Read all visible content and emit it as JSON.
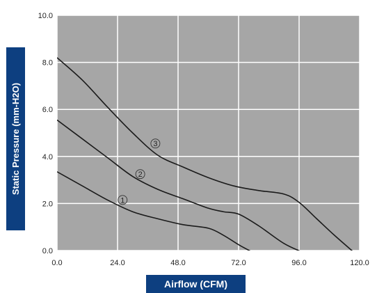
{
  "colors": {
    "plot_background": "#a6a6a6",
    "grid": "#ffffff",
    "curve": "#1a1a1a",
    "label_box": "#0d3f80"
  },
  "chart_data": {
    "type": "line",
    "title": "",
    "xlabel": "Airflow (CFM)",
    "ylabel": "Static Pressure (mm-H2O)",
    "xlim": [
      0,
      120
    ],
    "ylim": [
      0,
      10
    ],
    "xticks": [
      "0.0",
      "24.0",
      "48.0",
      "72.0",
      "96.0",
      "120.0"
    ],
    "yticks": [
      "0.0",
      "2.0",
      "4.0",
      "6.0",
      "8.0",
      "10.0"
    ],
    "grid": true,
    "series": [
      {
        "name": "1",
        "x": [
          0,
          10,
          20,
          30,
          40,
          50,
          60,
          66,
          72,
          78
        ],
        "y": [
          3.35,
          2.75,
          2.15,
          1.65,
          1.35,
          1.1,
          0.95,
          0.65,
          0.25,
          -0.1
        ]
      },
      {
        "name": "2",
        "x": [
          0,
          10,
          20,
          30,
          40,
          50,
          60,
          66,
          72,
          80,
          90,
          98
        ],
        "y": [
          5.55,
          4.75,
          3.95,
          3.15,
          2.6,
          2.2,
          1.8,
          1.65,
          1.55,
          1.05,
          0.3,
          -0.1
        ]
      },
      {
        "name": "3",
        "x": [
          0,
          10,
          20,
          30,
          40,
          50,
          60,
          70,
          80,
          90,
          96,
          103,
          110,
          118
        ],
        "y": [
          8.2,
          7.25,
          6.1,
          5.0,
          4.05,
          3.55,
          3.1,
          2.75,
          2.55,
          2.4,
          2.05,
          1.35,
          0.65,
          -0.1
        ]
      }
    ],
    "curve_labels": [
      {
        "text": "1",
        "x": 26,
        "y": 2.15
      },
      {
        "text": "2",
        "x": 33,
        "y": 3.25
      },
      {
        "text": "3",
        "x": 39,
        "y": 4.55
      }
    ]
  }
}
